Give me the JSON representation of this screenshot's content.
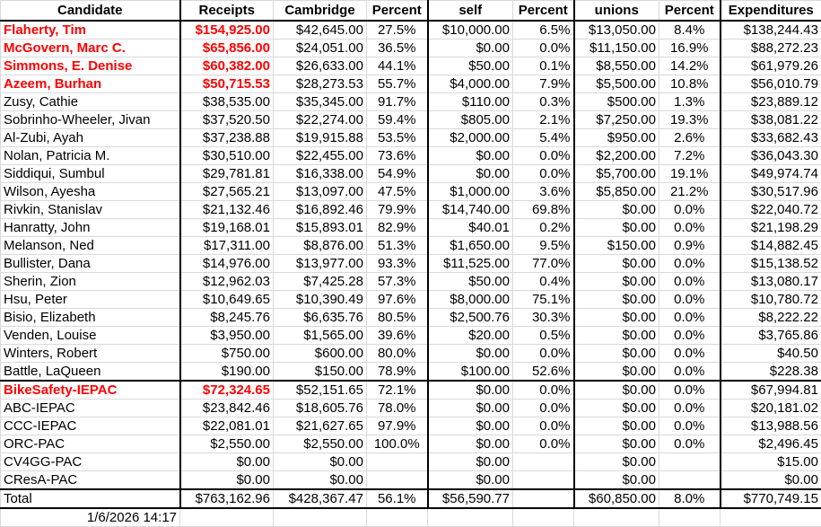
{
  "sheet": {
    "headers": [
      "Candidate",
      "Receipts",
      "Cambridge",
      "Percent",
      "self",
      "Percent",
      "unions",
      "Percent",
      "Expenditures"
    ],
    "candidates": [
      {
        "name": "Flaherty, Tim",
        "receipts": "$154,925.00",
        "cambridge": "$42,645.00",
        "cam_pct": "27.5%",
        "self": "$10,000.00",
        "self_pct": "6.5%",
        "unions": "$13,050.00",
        "union_pct": "8.4%",
        "expenditures": "$138,244.43",
        "highlight": true
      },
      {
        "name": "McGovern, Marc C.",
        "receipts": "$65,856.00",
        "cambridge": "$24,051.00",
        "cam_pct": "36.5%",
        "self": "$0.00",
        "self_pct": "0.0%",
        "unions": "$11,150.00",
        "union_pct": "16.9%",
        "expenditures": "$88,272.23",
        "highlight": true
      },
      {
        "name": "Simmons, E. Denise",
        "receipts": "$60,382.00",
        "cambridge": "$26,633.00",
        "cam_pct": "44.1%",
        "self": "$50.00",
        "self_pct": "0.1%",
        "unions": "$8,550.00",
        "union_pct": "14.2%",
        "expenditures": "$61,979.26",
        "highlight": true
      },
      {
        "name": "Azeem, Burhan",
        "receipts": "$50,715.53",
        "cambridge": "$28,273.53",
        "cam_pct": "55.7%",
        "self": "$4,000.00",
        "self_pct": "7.9%",
        "unions": "$5,500.00",
        "union_pct": "10.8%",
        "expenditures": "$56,010.79",
        "highlight": true
      },
      {
        "name": "Zusy, Cathie",
        "receipts": "$38,535.00",
        "cambridge": "$35,345.00",
        "cam_pct": "91.7%",
        "self": "$110.00",
        "self_pct": "0.3%",
        "unions": "$500.00",
        "union_pct": "1.3%",
        "expenditures": "$23,889.12"
      },
      {
        "name": "Sobrinho-Wheeler, Jivan",
        "receipts": "$37,520.50",
        "cambridge": "$22,274.00",
        "cam_pct": "59.4%",
        "self": "$805.00",
        "self_pct": "2.1%",
        "unions": "$7,250.00",
        "union_pct": "19.3%",
        "expenditures": "$38,081.22"
      },
      {
        "name": "Al-Zubi, Ayah",
        "receipts": "$37,238.88",
        "cambridge": "$19,915.88",
        "cam_pct": "53.5%",
        "self": "$2,000.00",
        "self_pct": "5.4%",
        "unions": "$950.00",
        "union_pct": "2.6%",
        "expenditures": "$33,682.43"
      },
      {
        "name": "Nolan, Patricia M.",
        "receipts": "$30,510.00",
        "cambridge": "$22,455.00",
        "cam_pct": "73.6%",
        "self": "$0.00",
        "self_pct": "0.0%",
        "unions": "$2,200.00",
        "union_pct": "7.2%",
        "expenditures": "$36,043.30"
      },
      {
        "name": "Siddiqui, Sumbul",
        "receipts": "$29,781.81",
        "cambridge": "$16,338.00",
        "cam_pct": "54.9%",
        "self": "$0.00",
        "self_pct": "0.0%",
        "unions": "$5,700.00",
        "union_pct": "19.1%",
        "expenditures": "$49,974.74"
      },
      {
        "name": "Wilson, Ayesha",
        "receipts": "$27,565.21",
        "cambridge": "$13,097.00",
        "cam_pct": "47.5%",
        "self": "$1,000.00",
        "self_pct": "3.6%",
        "unions": "$5,850.00",
        "union_pct": "21.2%",
        "expenditures": "$30,517.96"
      },
      {
        "name": "Rivkin, Stanislav",
        "receipts": "$21,132.46",
        "cambridge": "$16,892.46",
        "cam_pct": "79.9%",
        "self": "$14,740.00",
        "self_pct": "69.8%",
        "unions": "$0.00",
        "union_pct": "0.0%",
        "expenditures": "$22,040.72"
      },
      {
        "name": "Hanratty, John",
        "receipts": "$19,168.01",
        "cambridge": "$15,893.01",
        "cam_pct": "82.9%",
        "self": "$40.01",
        "self_pct": "0.2%",
        "unions": "$0.00",
        "union_pct": "0.0%",
        "expenditures": "$21,198.29"
      },
      {
        "name": "Melanson, Ned",
        "receipts": "$17,311.00",
        "cambridge": "$8,876.00",
        "cam_pct": "51.3%",
        "self": "$1,650.00",
        "self_pct": "9.5%",
        "unions": "$150.00",
        "union_pct": "0.9%",
        "expenditures": "$14,882.45"
      },
      {
        "name": "Bullister, Dana",
        "receipts": "$14,976.00",
        "cambridge": "$13,977.00",
        "cam_pct": "93.3%",
        "self": "$11,525.00",
        "self_pct": "77.0%",
        "unions": "$0.00",
        "union_pct": "0.0%",
        "expenditures": "$15,138.52"
      },
      {
        "name": "Sherin, Zion",
        "receipts": "$12,962.03",
        "cambridge": "$7,425.28",
        "cam_pct": "57.3%",
        "self": "$50.00",
        "self_pct": "0.4%",
        "unions": "$0.00",
        "union_pct": "0.0%",
        "expenditures": "$13,080.17"
      },
      {
        "name": "Hsu, Peter",
        "receipts": "$10,649.65",
        "cambridge": "$10,390.49",
        "cam_pct": "97.6%",
        "self": "$8,000.00",
        "self_pct": "75.1%",
        "unions": "$0.00",
        "union_pct": "0.0%",
        "expenditures": "$10,780.72"
      },
      {
        "name": "Bisio, Elizabeth",
        "receipts": "$8,245.76",
        "cambridge": "$6,635.76",
        "cam_pct": "80.5%",
        "self": "$2,500.76",
        "self_pct": "30.3%",
        "unions": "$0.00",
        "union_pct": "0.0%",
        "expenditures": "$8,222.22"
      },
      {
        "name": "Venden, Louise",
        "receipts": "$3,950.00",
        "cambridge": "$1,565.00",
        "cam_pct": "39.6%",
        "self": "$20.00",
        "self_pct": "0.5%",
        "unions": "$0.00",
        "union_pct": "0.0%",
        "expenditures": "$3,765.86"
      },
      {
        "name": "Winters, Robert",
        "receipts": "$750.00",
        "cambridge": "$600.00",
        "cam_pct": "80.0%",
        "self": "$0.00",
        "self_pct": "0.0%",
        "unions": "$0.00",
        "union_pct": "0.0%",
        "expenditures": "$40.50"
      },
      {
        "name": "Battle, LaQueen",
        "receipts": "$190.00",
        "cambridge": "$150.00",
        "cam_pct": "78.9%",
        "self": "$100.00",
        "self_pct": "52.6%",
        "unions": "$0.00",
        "union_pct": "0.0%",
        "expenditures": "$228.38"
      }
    ],
    "pacs": [
      {
        "name": "BikeSafety-IEPAC",
        "receipts": "$72,324.65",
        "cambridge": "$52,151.65",
        "cam_pct": "72.1%",
        "self": "$0.00",
        "self_pct": "0.0%",
        "unions": "$0.00",
        "union_pct": "0.0%",
        "expenditures": "$67,994.81",
        "highlight": true
      },
      {
        "name": "ABC-IEPAC",
        "receipts": "$23,842.46",
        "cambridge": "$18,605.76",
        "cam_pct": "78.0%",
        "self": "$0.00",
        "self_pct": "0.0%",
        "unions": "$0.00",
        "union_pct": "0.0%",
        "expenditures": "$20,181.02"
      },
      {
        "name": "CCC-IEPAC",
        "receipts": "$22,081.01",
        "cambridge": "$21,627.65",
        "cam_pct": "97.9%",
        "self": "$0.00",
        "self_pct": "0.0%",
        "unions": "$0.00",
        "union_pct": "0.0%",
        "expenditures": "$13,988.56"
      },
      {
        "name": "ORC-PAC",
        "receipts": "$2,550.00",
        "cambridge": "$2,550.00",
        "cam_pct": "100.0%",
        "self": "$0.00",
        "self_pct": "0.0%",
        "unions": "$0.00",
        "union_pct": "0.0%",
        "expenditures": "$2,496.45"
      },
      {
        "name": "CV4GG-PAC",
        "receipts": "$0.00",
        "cambridge": "$0.00",
        "cam_pct": "",
        "self": "$0.00",
        "self_pct": "",
        "unions": "$0.00",
        "union_pct": "",
        "expenditures": "$15.00"
      },
      {
        "name": "CResA-PAC",
        "receipts": "$0.00",
        "cambridge": "$0.00",
        "cam_pct": "",
        "self": "$0.00",
        "self_pct": "",
        "unions": "$0.00",
        "union_pct": "",
        "expenditures": "$0.00"
      }
    ],
    "total": {
      "name": "Total",
      "receipts": "$763,162.96",
      "cambridge": "$428,367.47",
      "cam_pct": "56.1%",
      "self": "$56,590.77",
      "self_pct": "",
      "unions": "$60,850.00",
      "union_pct": "8.0%",
      "expenditures": "$770,749.15"
    },
    "timestamp": "1/6/2026 14:17",
    "colors": {
      "highlight": "#ff0000",
      "grid": "#d9d9d9",
      "border": "#000000"
    }
  }
}
